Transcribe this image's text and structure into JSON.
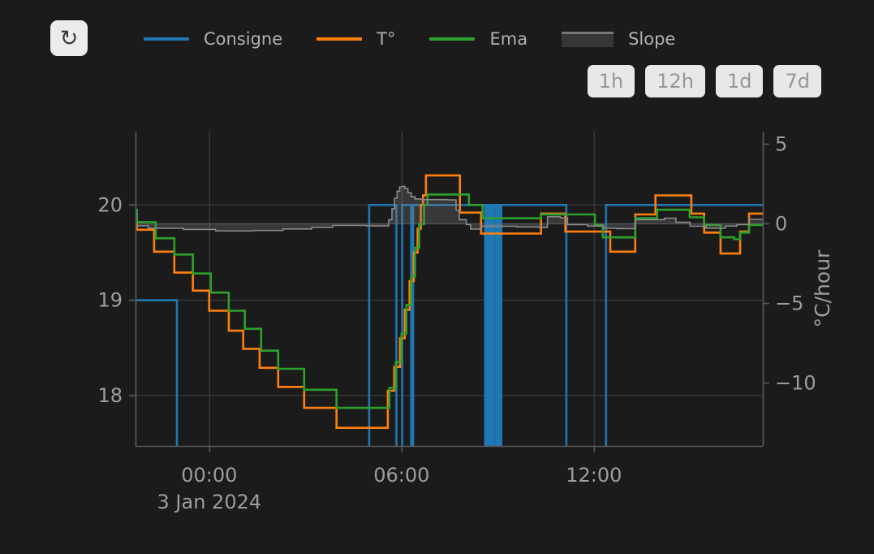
{
  "toolbar": {
    "refresh_icon": "↻",
    "range_buttons": [
      {
        "label": "1h"
      },
      {
        "label": "12h"
      },
      {
        "label": "1d"
      },
      {
        "label": "7d"
      }
    ]
  },
  "legend": {
    "items": [
      {
        "label": "Consigne",
        "color": "#1f77b4",
        "type": "line"
      },
      {
        "label": "T°",
        "color": "#ff7f0e",
        "type": "line"
      },
      {
        "label": "Ema",
        "color": "#2ca02c",
        "type": "line"
      },
      {
        "label": "Slope",
        "color": "#787878",
        "type": "area"
      }
    ]
  },
  "colors": {
    "background": "#1b1b1b",
    "grid": "#3a3a3a",
    "zeroline": "#474747",
    "axis_line": "#5a5a5a",
    "tick_text": "#9d9d9d",
    "slope_fill": "rgba(125,125,125,0.30)",
    "slope_line": "#8a8a8a"
  },
  "chart_data": {
    "type": "line",
    "x_axis": {
      "range": [
        -2.3,
        17.27
      ],
      "ticks": [
        {
          "t": 0,
          "label": "00:00"
        },
        {
          "t": 6,
          "label": "06:00"
        },
        {
          "t": 12,
          "label": "12:00"
        }
      ],
      "date_label": "3 Jan 2024",
      "date_label_t": 0
    },
    "y_left": {
      "range": [
        17.47,
        20.77
      ],
      "ticks": [
        {
          "v": 18,
          "label": "18"
        },
        {
          "v": 19,
          "label": "19"
        },
        {
          "v": 20,
          "label": "20"
        }
      ]
    },
    "y_right": {
      "range": [
        -13.95,
        5.79
      ],
      "label": "°C/hour",
      "ticks": [
        {
          "v": 5,
          "label": "5"
        },
        {
          "v": 0,
          "label": "0"
        },
        {
          "v": -5,
          "label": "−5"
        },
        {
          "v": -10,
          "label": "−10"
        }
      ],
      "zeroline": 0
    },
    "series": [
      {
        "name": "Consigne",
        "color": "#1f77b4",
        "axis": "left",
        "width": 2.6,
        "mode": "step",
        "points": [
          [
            -2.3,
            19.0
          ],
          [
            -1.01,
            16.5
          ],
          [
            4.99,
            20.0
          ],
          [
            5.84,
            16.5
          ],
          [
            6.02,
            20.0
          ],
          [
            6.3,
            16.5
          ],
          [
            6.36,
            20.0
          ],
          [
            8.61,
            16.5
          ],
          [
            8.66,
            20.0
          ],
          [
            8.72,
            16.5
          ],
          [
            8.77,
            20.0
          ],
          [
            8.83,
            16.5
          ],
          [
            8.88,
            20.0
          ],
          [
            8.95,
            16.5
          ],
          [
            9.0,
            20.0
          ],
          [
            9.06,
            16.5
          ],
          [
            9.11,
            20.0
          ],
          [
            11.14,
            16.5
          ],
          [
            12.38,
            20.0
          ]
        ]
      },
      {
        "name": "T°",
        "color": "#ff7f0e",
        "axis": "left",
        "width": 2.6,
        "mode": "step",
        "points": [
          [
            -2.3,
            19.91
          ],
          [
            -2.26,
            19.74
          ],
          [
            -1.72,
            19.51
          ],
          [
            -1.09,
            19.29
          ],
          [
            -0.51,
            19.1
          ],
          [
            0.0,
            18.89
          ],
          [
            0.61,
            18.68
          ],
          [
            1.06,
            18.49
          ],
          [
            1.57,
            18.29
          ],
          [
            2.15,
            18.09
          ],
          [
            2.96,
            17.87
          ],
          [
            3.97,
            17.66
          ],
          [
            5.57,
            18.05
          ],
          [
            5.77,
            18.3
          ],
          [
            5.95,
            18.6
          ],
          [
            6.1,
            18.9
          ],
          [
            6.25,
            19.2
          ],
          [
            6.38,
            19.5
          ],
          [
            6.5,
            19.75
          ],
          [
            6.6,
            20.0
          ],
          [
            6.67,
            20.1
          ],
          [
            6.76,
            20.31
          ],
          [
            7.82,
            19.92
          ],
          [
            8.48,
            19.7
          ],
          [
            10.35,
            19.91
          ],
          [
            11.11,
            19.72
          ],
          [
            12.51,
            19.51
          ],
          [
            13.29,
            19.9
          ],
          [
            13.92,
            20.1
          ],
          [
            15.04,
            19.91
          ],
          [
            15.44,
            19.71
          ],
          [
            15.95,
            19.49
          ],
          [
            16.56,
            19.72
          ],
          [
            16.84,
            19.91
          ]
        ]
      },
      {
        "name": "Ema",
        "color": "#2ca02c",
        "axis": "left",
        "width": 2.6,
        "mode": "step",
        "points": [
          [
            -2.3,
            19.95
          ],
          [
            -2.26,
            19.82
          ],
          [
            -1.67,
            19.65
          ],
          [
            -1.09,
            19.48
          ],
          [
            -0.51,
            19.28
          ],
          [
            0.05,
            19.08
          ],
          [
            0.61,
            18.89
          ],
          [
            1.11,
            18.7
          ],
          [
            1.62,
            18.47
          ],
          [
            2.15,
            18.28
          ],
          [
            2.96,
            18.06
          ],
          [
            3.97,
            17.87
          ],
          [
            5.62,
            18.08
          ],
          [
            5.82,
            18.35
          ],
          [
            6.0,
            18.65
          ],
          [
            6.15,
            18.95
          ],
          [
            6.3,
            19.25
          ],
          [
            6.42,
            19.55
          ],
          [
            6.55,
            19.8
          ],
          [
            6.7,
            20.0
          ],
          [
            6.81,
            20.11
          ],
          [
            8.1,
            20.0
          ],
          [
            8.53,
            19.86
          ],
          [
            10.35,
            19.9
          ],
          [
            12.03,
            19.79
          ],
          [
            12.28,
            19.66
          ],
          [
            13.29,
            19.86
          ],
          [
            13.97,
            19.95
          ],
          [
            14.99,
            19.87
          ],
          [
            15.44,
            19.79
          ],
          [
            15.95,
            19.66
          ],
          [
            16.38,
            19.64
          ],
          [
            16.56,
            19.71
          ],
          [
            16.84,
            19.79
          ]
        ]
      },
      {
        "name": "Slope",
        "color": "#8a8a8a",
        "axis": "right",
        "width": 1.6,
        "mode": "step",
        "fill_to_zero": true,
        "points": [
          [
            -2.3,
            -0.12
          ],
          [
            -1.9,
            -0.28
          ],
          [
            -0.8,
            -0.35
          ],
          [
            0.2,
            -0.45
          ],
          [
            1.4,
            -0.42
          ],
          [
            2.3,
            -0.32
          ],
          [
            3.2,
            -0.22
          ],
          [
            3.85,
            -0.1
          ],
          [
            4.9,
            -0.13
          ],
          [
            5.6,
            0.25
          ],
          [
            5.7,
            0.95
          ],
          [
            5.78,
            1.6
          ],
          [
            5.86,
            2.05
          ],
          [
            5.94,
            2.32
          ],
          [
            6.02,
            2.35
          ],
          [
            6.1,
            2.22
          ],
          [
            6.2,
            1.95
          ],
          [
            6.3,
            1.7
          ],
          [
            6.42,
            1.56
          ],
          [
            6.6,
            1.52
          ],
          [
            7.45,
            1.5
          ],
          [
            7.7,
            0.85
          ],
          [
            7.8,
            0.26
          ],
          [
            8.02,
            -0.05
          ],
          [
            8.15,
            -0.33
          ],
          [
            8.5,
            -0.16
          ],
          [
            9.6,
            -0.2
          ],
          [
            10.3,
            -0.24
          ],
          [
            10.55,
            0.45
          ],
          [
            10.95,
            0.38
          ],
          [
            11.18,
            -0.05
          ],
          [
            11.8,
            -0.14
          ],
          [
            12.3,
            -0.28
          ],
          [
            12.7,
            -0.3
          ],
          [
            13.29,
            0.26
          ],
          [
            14.2,
            0.36
          ],
          [
            14.56,
            0.1
          ],
          [
            15.0,
            -0.15
          ],
          [
            15.5,
            -0.28
          ],
          [
            16.1,
            -0.14
          ],
          [
            16.46,
            -0.05
          ],
          [
            16.84,
            0.28
          ]
        ]
      }
    ]
  }
}
